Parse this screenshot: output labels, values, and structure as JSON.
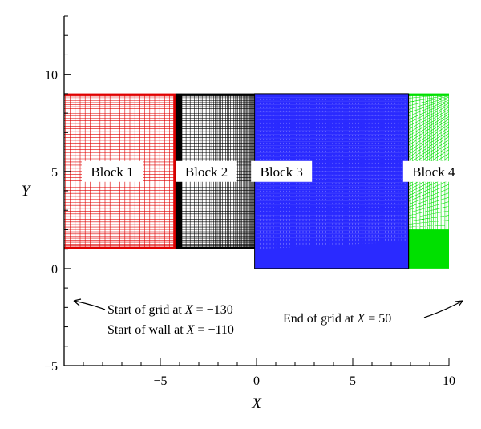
{
  "axes": {
    "xlabel": "X",
    "ylabel": "Y",
    "xlim": [
      -10,
      10
    ],
    "ylim": [
      -5,
      13
    ],
    "x_major_ticks": [
      {
        "value": -5,
        "label": "−5"
      },
      {
        "value": 0,
        "label": "0"
      },
      {
        "value": 5,
        "label": "5"
      },
      {
        "value": 10,
        "label": "10"
      }
    ],
    "y_major_ticks": [
      {
        "value": -5,
        "label": "−5"
      },
      {
        "value": 0,
        "label": "0"
      },
      {
        "value": 5,
        "label": "5"
      },
      {
        "value": 10,
        "label": "10"
      }
    ],
    "minor_tick_step": 1
  },
  "blocks": [
    {
      "label": "Block 1",
      "color": "#e00000",
      "x_range": [
        -10,
        -4.2
      ],
      "y_range": [
        1,
        9
      ],
      "label_at": [
        -7.5,
        5
      ]
    },
    {
      "label": "Block 2",
      "color": "#000000",
      "x_range": [
        -4.2,
        -0.1
      ],
      "y_range": [
        1,
        9
      ],
      "label_at": [
        -2.6,
        5
      ]
    },
    {
      "label": "Block 3",
      "color": "#2a2aff",
      "x_range": [
        -0.1,
        7.9
      ],
      "y_range": [
        0,
        9
      ],
      "label_at": [
        1.3,
        5
      ]
    },
    {
      "label": "Block 4",
      "color": "#00e000",
      "x_range": [
        7.9,
        10
      ],
      "y_range": [
        0,
        9
      ],
      "label_at": [
        9.2,
        5
      ]
    }
  ],
  "annotations": {
    "start_grid": {
      "prefix": "Start of grid at ",
      "var": "X",
      "value": " = −130"
    },
    "start_wall": {
      "prefix": "Start of wall at ",
      "var": "X",
      "value": " = −110"
    },
    "end_grid": {
      "prefix": "End of grid at ",
      "var": "X",
      "value": " = 50"
    }
  }
}
